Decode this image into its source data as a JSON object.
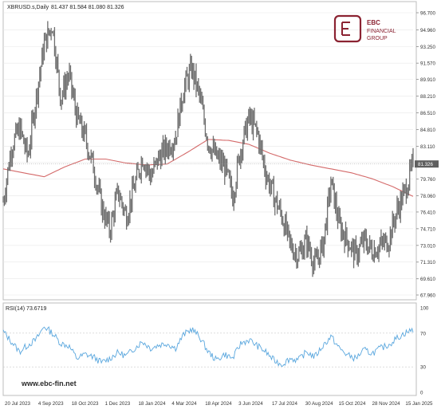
{
  "chart_data": [
    {
      "type": "candlestick",
      "title": "XBRUSD.s,Daily",
      "ohlc_label": "81.437 81.584 81.080 81.326",
      "last_price_label": "81.326",
      "ylim": [
        67.96,
        96.7
      ],
      "y_ticks": [
        "96.700",
        "94.960",
        "93.250",
        "91.570",
        "89.910",
        "88.210",
        "86.510",
        "84.810",
        "83.110",
        "81.450",
        "79.760",
        "78.060",
        "76.410",
        "74.710",
        "73.010",
        "71.310",
        "69.610",
        "67.960"
      ],
      "x_ticks": [
        "20 Jul 2023",
        "4 Sep 2023",
        "18 Oct 2023",
        "1 Dec 2023",
        "18 Jan 2024",
        "4 Mar 2024",
        "18 Apr 2024",
        "3 Jun 2024",
        "17 Jul 2024",
        "30 Aug 2024",
        "15 Oct 2024",
        "28 Nov 2024",
        "15 Jan 2025"
      ],
      "price_path": [
        {
          "t": 0.0,
          "v": 77.5
        },
        {
          "t": 0.02,
          "v": 83.0
        },
        {
          "t": 0.04,
          "v": 85.0
        },
        {
          "t": 0.06,
          "v": 82.0
        },
        {
          "t": 0.08,
          "v": 88.0
        },
        {
          "t": 0.1,
          "v": 93.5
        },
        {
          "t": 0.12,
          "v": 95.5
        },
        {
          "t": 0.14,
          "v": 88.0
        },
        {
          "t": 0.16,
          "v": 90.5
        },
        {
          "t": 0.18,
          "v": 86.0
        },
        {
          "t": 0.2,
          "v": 84.0
        },
        {
          "t": 0.22,
          "v": 81.0
        },
        {
          "t": 0.24,
          "v": 77.0
        },
        {
          "t": 0.26,
          "v": 74.5
        },
        {
          "t": 0.28,
          "v": 78.5
        },
        {
          "t": 0.3,
          "v": 76.0
        },
        {
          "t": 0.32,
          "v": 79.0
        },
        {
          "t": 0.34,
          "v": 82.0
        },
        {
          "t": 0.36,
          "v": 80.0
        },
        {
          "t": 0.38,
          "v": 82.0
        },
        {
          "t": 0.4,
          "v": 83.0
        },
        {
          "t": 0.42,
          "v": 84.0
        },
        {
          "t": 0.44,
          "v": 89.0
        },
        {
          "t": 0.46,
          "v": 91.0
        },
        {
          "t": 0.48,
          "v": 88.0
        },
        {
          "t": 0.5,
          "v": 83.5
        },
        {
          "t": 0.52,
          "v": 82.0
        },
        {
          "t": 0.54,
          "v": 81.0
        },
        {
          "t": 0.56,
          "v": 78.0
        },
        {
          "t": 0.58,
          "v": 83.0
        },
        {
          "t": 0.6,
          "v": 86.0
        },
        {
          "t": 0.62,
          "v": 84.5
        },
        {
          "t": 0.64,
          "v": 80.5
        },
        {
          "t": 0.66,
          "v": 78.0
        },
        {
          "t": 0.68,
          "v": 76.0
        },
        {
          "t": 0.7,
          "v": 73.0
        },
        {
          "t": 0.72,
          "v": 72.0
        },
        {
          "t": 0.74,
          "v": 73.5
        },
        {
          "t": 0.76,
          "v": 71.0
        },
        {
          "t": 0.78,
          "v": 73.0
        },
        {
          "t": 0.8,
          "v": 79.5
        },
        {
          "t": 0.82,
          "v": 75.0
        },
        {
          "t": 0.84,
          "v": 73.5
        },
        {
          "t": 0.86,
          "v": 72.0
        },
        {
          "t": 0.88,
          "v": 73.5
        },
        {
          "t": 0.9,
          "v": 72.5
        },
        {
          "t": 0.92,
          "v": 73.0
        },
        {
          "t": 0.94,
          "v": 73.5
        },
        {
          "t": 0.96,
          "v": 76.5
        },
        {
          "t": 0.98,
          "v": 78.5
        },
        {
          "t": 1.0,
          "v": 81.3
        }
      ],
      "moving_average": [
        {
          "t": 0.0,
          "v": 80.8
        },
        {
          "t": 0.05,
          "v": 80.4
        },
        {
          "t": 0.1,
          "v": 80.0
        },
        {
          "t": 0.15,
          "v": 81.0
        },
        {
          "t": 0.2,
          "v": 81.8
        },
        {
          "t": 0.25,
          "v": 81.8
        },
        {
          "t": 0.3,
          "v": 81.4
        },
        {
          "t": 0.35,
          "v": 81.2
        },
        {
          "t": 0.4,
          "v": 81.3
        },
        {
          "t": 0.45,
          "v": 82.5
        },
        {
          "t": 0.5,
          "v": 83.8
        },
        {
          "t": 0.55,
          "v": 83.7
        },
        {
          "t": 0.6,
          "v": 83.3
        },
        {
          "t": 0.65,
          "v": 82.4
        },
        {
          "t": 0.7,
          "v": 81.7
        },
        {
          "t": 0.75,
          "v": 81.2
        },
        {
          "t": 0.8,
          "v": 80.8
        },
        {
          "t": 0.85,
          "v": 80.4
        },
        {
          "t": 0.9,
          "v": 79.8
        },
        {
          "t": 0.95,
          "v": 79.0
        },
        {
          "t": 1.0,
          "v": 78.0
        }
      ],
      "colors": {
        "price": "#6e6e6e",
        "moving_average": "#d46a6a",
        "grid": "#e8e8e8",
        "axis_text": "#333333"
      }
    },
    {
      "type": "line",
      "title": "RSI(14) 73.6719",
      "ylim": [
        0,
        100
      ],
      "y_ticks": [
        "100",
        "70",
        "30",
        "0"
      ],
      "levels": [
        70,
        30
      ],
      "values": [
        {
          "t": 0.0,
          "v": 72
        },
        {
          "t": 0.02,
          "v": 60
        },
        {
          "t": 0.04,
          "v": 48
        },
        {
          "t": 0.06,
          "v": 56
        },
        {
          "t": 0.08,
          "v": 62
        },
        {
          "t": 0.1,
          "v": 78
        },
        {
          "t": 0.12,
          "v": 70
        },
        {
          "t": 0.14,
          "v": 58
        },
        {
          "t": 0.16,
          "v": 55
        },
        {
          "t": 0.18,
          "v": 40
        },
        {
          "t": 0.2,
          "v": 45
        },
        {
          "t": 0.22,
          "v": 42
        },
        {
          "t": 0.24,
          "v": 35
        },
        {
          "t": 0.26,
          "v": 40
        },
        {
          "t": 0.28,
          "v": 47
        },
        {
          "t": 0.3,
          "v": 43
        },
        {
          "t": 0.32,
          "v": 52
        },
        {
          "t": 0.34,
          "v": 60
        },
        {
          "t": 0.36,
          "v": 52
        },
        {
          "t": 0.38,
          "v": 56
        },
        {
          "t": 0.4,
          "v": 58
        },
        {
          "t": 0.42,
          "v": 52
        },
        {
          "t": 0.44,
          "v": 68
        },
        {
          "t": 0.46,
          "v": 75
        },
        {
          "t": 0.48,
          "v": 65
        },
        {
          "t": 0.5,
          "v": 48
        },
        {
          "t": 0.52,
          "v": 38
        },
        {
          "t": 0.54,
          "v": 45
        },
        {
          "t": 0.56,
          "v": 40
        },
        {
          "t": 0.58,
          "v": 58
        },
        {
          "t": 0.6,
          "v": 62
        },
        {
          "t": 0.62,
          "v": 55
        },
        {
          "t": 0.64,
          "v": 48
        },
        {
          "t": 0.66,
          "v": 38
        },
        {
          "t": 0.68,
          "v": 33
        },
        {
          "t": 0.7,
          "v": 40
        },
        {
          "t": 0.72,
          "v": 38
        },
        {
          "t": 0.74,
          "v": 48
        },
        {
          "t": 0.76,
          "v": 42
        },
        {
          "t": 0.78,
          "v": 55
        },
        {
          "t": 0.8,
          "v": 66
        },
        {
          "t": 0.82,
          "v": 52
        },
        {
          "t": 0.84,
          "v": 44
        },
        {
          "t": 0.86,
          "v": 40
        },
        {
          "t": 0.88,
          "v": 50
        },
        {
          "t": 0.9,
          "v": 46
        },
        {
          "t": 0.92,
          "v": 52
        },
        {
          "t": 0.94,
          "v": 56
        },
        {
          "t": 0.96,
          "v": 64
        },
        {
          "t": 0.98,
          "v": 70
        },
        {
          "t": 1.0,
          "v": 74
        }
      ],
      "colors": {
        "line": "#5aa7de"
      }
    }
  ],
  "branding": {
    "logo_text_1": "EBC",
    "logo_text_2": "FINANCIAL",
    "logo_text_3": "GROUP",
    "website": "www.ebc-fin.net"
  }
}
